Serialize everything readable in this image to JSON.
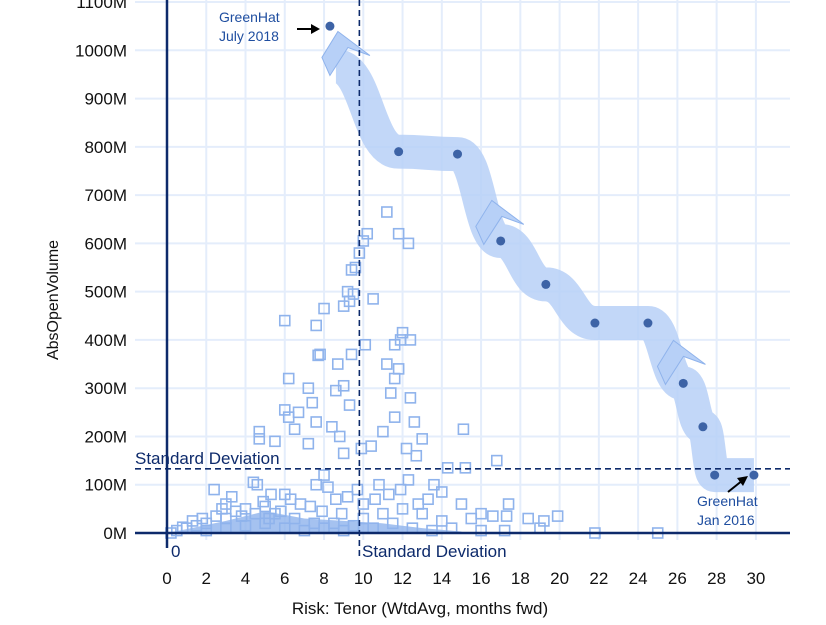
{
  "chart_data": {
    "type": "scatter",
    "xlabel": "Risk: Tenor (WtdAvg, months fwd)",
    "ylabel": "AbsOpenVolume",
    "xlim": [
      -1.6,
      31.5
    ],
    "ylim": [
      0,
      1100
    ],
    "xticks": [
      0,
      2,
      4,
      6,
      8,
      10,
      12,
      14,
      16,
      18,
      20,
      22,
      24,
      26,
      28,
      30
    ],
    "xtick_labels": [
      "0",
      "2",
      "4",
      "6",
      "8",
      "10",
      "12",
      "14",
      "16",
      "18",
      "20",
      "22",
      "24",
      "26",
      "28",
      "30"
    ],
    "yticks": [
      0,
      100,
      200,
      300,
      400,
      500,
      600,
      700,
      800,
      900,
      1000,
      1100
    ],
    "ytick_labels": [
      "0M",
      "100M",
      "200M",
      "300M",
      "400M",
      "500M",
      "600M",
      "700M",
      "800M",
      "900M",
      "1000M",
      "1100M"
    ],
    "grid": true,
    "colors": {
      "scatter": "#8fb3ec",
      "trend_dots": "#3d63a6",
      "ribbon": "#b7d0f7",
      "refline": "#0d2a6b",
      "axis": "#0d2a6b",
      "grid": "#e4edfb"
    },
    "reference_lines": {
      "zero_x_label": "0",
      "std_dev_y": {
        "value": 133,
        "label": "Standard Deviation"
      },
      "std_dev_x": {
        "value": 9.8,
        "label": "Standard Deviation"
      }
    },
    "annotations": [
      {
        "text": [
          "GreenHat",
          "July 2018"
        ],
        "x": 8.3,
        "y": 1050
      },
      {
        "text": [
          "GreenHat",
          "Jan 2016"
        ],
        "x": 29.9,
        "y": 120
      }
    ],
    "trend_series": {
      "x": [
        8.3,
        11.8,
        14.8,
        17.0,
        19.3,
        21.8,
        24.5,
        26.3,
        27.3,
        27.9,
        29.9
      ],
      "y": [
        1050,
        790,
        785,
        605,
        515,
        435,
        435,
        310,
        220,
        120,
        120
      ]
    },
    "scatter_series": {
      "points": [
        [
          11.2,
          665
        ],
        [
          10.2,
          620
        ],
        [
          10.0,
          605
        ],
        [
          11.8,
          620
        ],
        [
          12.3,
          600
        ],
        [
          9.8,
          580
        ],
        [
          9.6,
          550
        ],
        [
          9.4,
          545
        ],
        [
          9.2,
          500
        ],
        [
          9.5,
          495
        ],
        [
          10.5,
          485
        ],
        [
          9.0,
          470
        ],
        [
          8.0,
          465
        ],
        [
          9.3,
          480
        ],
        [
          6.0,
          440
        ],
        [
          7.6,
          430
        ],
        [
          12.0,
          415
        ],
        [
          11.9,
          400
        ],
        [
          11.6,
          390
        ],
        [
          12.4,
          400
        ],
        [
          9.4,
          370
        ],
        [
          7.8,
          370
        ],
        [
          7.7,
          368
        ],
        [
          10.1,
          390
        ],
        [
          11.2,
          350
        ],
        [
          11.6,
          320
        ],
        [
          11.8,
          340
        ],
        [
          8.7,
          350
        ],
        [
          6.2,
          320
        ],
        [
          9.0,
          305
        ],
        [
          7.2,
          300
        ],
        [
          8.6,
          295
        ],
        [
          11.4,
          290
        ],
        [
          12.4,
          280
        ],
        [
          7.4,
          270
        ],
        [
          9.3,
          265
        ],
        [
          6.0,
          255
        ],
        [
          6.7,
          250
        ],
        [
          6.2,
          240
        ],
        [
          11.6,
          240
        ],
        [
          12.6,
          230
        ],
        [
          7.6,
          230
        ],
        [
          8.4,
          220
        ],
        [
          6.5,
          215
        ],
        [
          4.7,
          210
        ],
        [
          15.1,
          215
        ],
        [
          13.0,
          195
        ],
        [
          11.0,
          210
        ],
        [
          8.8,
          200
        ],
        [
          4.7,
          195
        ],
        [
          5.5,
          190
        ],
        [
          7.2,
          185
        ],
        [
          9.9,
          175
        ],
        [
          10.4,
          180
        ],
        [
          12.2,
          175
        ],
        [
          12.7,
          160
        ],
        [
          9.0,
          165
        ],
        [
          16.8,
          150
        ],
        [
          14.3,
          135
        ],
        [
          15.2,
          135
        ],
        [
          8.0,
          120
        ],
        [
          4.6,
          100
        ],
        [
          4.4,
          105
        ],
        [
          2.4,
          90
        ],
        [
          3.3,
          75
        ],
        [
          3.0,
          60
        ],
        [
          5.3,
          80
        ],
        [
          6.0,
          80
        ],
        [
          7.6,
          100
        ],
        [
          8.2,
          95
        ],
        [
          10.8,
          100
        ],
        [
          12.3,
          110
        ],
        [
          13.6,
          100
        ],
        [
          14.0,
          85
        ],
        [
          15.0,
          60
        ],
        [
          16.0,
          40
        ],
        [
          16.6,
          35
        ],
        [
          17.4,
          60
        ],
        [
          17.3,
          35
        ],
        [
          18.4,
          30
        ],
        [
          19.2,
          25
        ],
        [
          19.9,
          35
        ],
        [
          19.0,
          10
        ],
        [
          21.8,
          0
        ],
        [
          25.0,
          0
        ],
        [
          17.2,
          5
        ],
        [
          16.0,
          5
        ],
        [
          1.0,
          10
        ],
        [
          1.3,
          25
        ],
        [
          2.0,
          20
        ],
        [
          2.5,
          35
        ],
        [
          3.5,
          45
        ],
        [
          4.0,
          50
        ],
        [
          5.0,
          55
        ],
        [
          5.8,
          45
        ],
        [
          6.8,
          60
        ],
        [
          7.3,
          55
        ],
        [
          8.6,
          70
        ],
        [
          9.2,
          75
        ],
        [
          10.0,
          60
        ],
        [
          11.3,
          80
        ],
        [
          12.0,
          50
        ],
        [
          13.0,
          40
        ],
        [
          14.0,
          25
        ],
        [
          15.5,
          30
        ],
        [
          0.2,
          0
        ],
        [
          0.5,
          5
        ],
        [
          1.5,
          15
        ],
        [
          3.0,
          30
        ],
        [
          4.5,
          40
        ],
        [
          5.5,
          40
        ],
        [
          6.5,
          30
        ],
        [
          7.5,
          20
        ],
        [
          8.5,
          20
        ],
        [
          9.5,
          15
        ],
        [
          10.5,
          10
        ],
        [
          11.5,
          20
        ],
        [
          12.5,
          10
        ],
        [
          13.5,
          5
        ],
        [
          14.5,
          10
        ],
        [
          2.0,
          5
        ],
        [
          3.0,
          10
        ],
        [
          4.0,
          15
        ],
        [
          5.0,
          20
        ],
        [
          6.0,
          10
        ],
        [
          7.0,
          5
        ],
        [
          8.0,
          10
        ],
        [
          9.0,
          5
        ],
        [
          10.0,
          30
        ],
        [
          11.0,
          40
        ],
        [
          12.8,
          60
        ],
        [
          13.3,
          70
        ],
        [
          3.8,
          35
        ],
        [
          4.9,
          65
        ],
        [
          5.2,
          30
        ],
        [
          6.3,
          70
        ],
        [
          7.9,
          45
        ],
        [
          8.9,
          40
        ],
        [
          9.7,
          90
        ],
        [
          10.6,
          70
        ],
        [
          11.9,
          90
        ],
        [
          2.8,
          50
        ],
        [
          1.8,
          30
        ],
        [
          0.8,
          12
        ]
      ]
    }
  }
}
